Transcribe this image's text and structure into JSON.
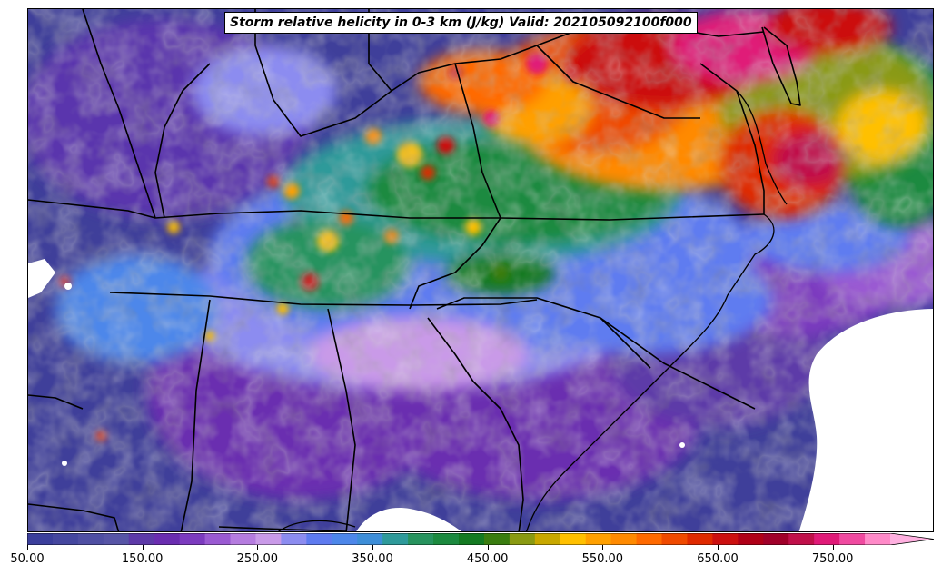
{
  "title": "Storm relative helicity in 0-3 km (J/kg) Valid: 202105092100f000",
  "colorbar": {
    "min": 50,
    "max": 800,
    "step": 25,
    "extend": "max",
    "colors": [
      "#3b3f9c",
      "#45479f",
      "#4f4fa3",
      "#5755a6",
      "#5d3aa8",
      "#6a2db0",
      "#7c3bbf",
      "#9a5ad2",
      "#b57cdf",
      "#c99ae8",
      "#8c8cf0",
      "#5e7bf0",
      "#4d87ea",
      "#3d8ed8",
      "#2e9a9a",
      "#27935e",
      "#1c8a3f",
      "#147a22",
      "#3a7d10",
      "#8a9a12",
      "#c8a800",
      "#ffc000",
      "#ffa000",
      "#ff8a00",
      "#ff6a00",
      "#f04a00",
      "#e02a00",
      "#cc1010",
      "#b00018",
      "#a0002a",
      "#c0104a",
      "#e01a78",
      "#f04aa0",
      "#ff8ac8"
    ],
    "extend_color": "#ffb0e0",
    "tick_values": [
      "50.00",
      "150.00",
      "250.00",
      "350.00",
      "450.00",
      "550.00",
      "650.00",
      "750.00"
    ]
  },
  "map": {
    "region": "southeastern-united-states",
    "features": [
      "state-boundaries",
      "coastline",
      "ocean-mask"
    ]
  }
}
